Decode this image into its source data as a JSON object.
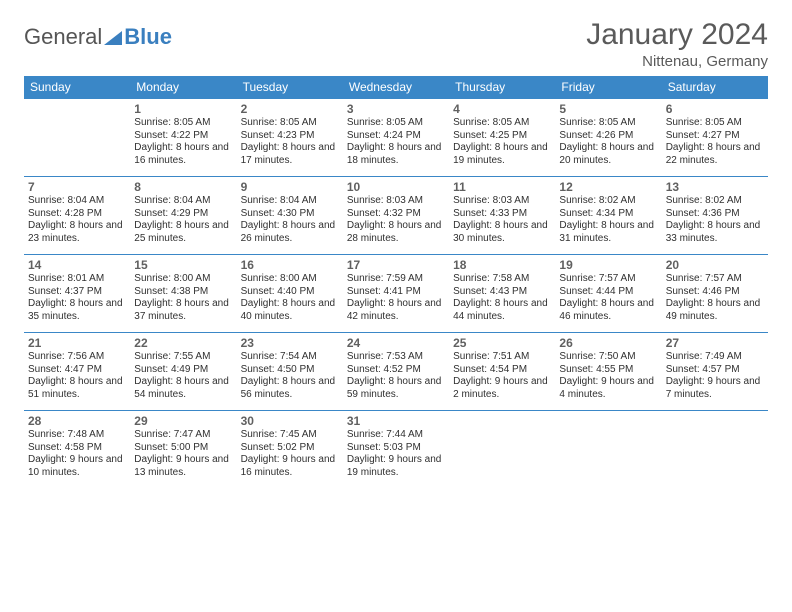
{
  "logo": {
    "part1": "General",
    "part2": "Blue"
  },
  "title": "January 2024",
  "location": "Nittenau, Germany",
  "colors": {
    "header_bg": "#3a87c7",
    "header_text": "#ffffff",
    "rule": "#3a87c7",
    "body_text": "#303030",
    "muted_text": "#5a5a5a"
  },
  "weekdays": [
    "Sunday",
    "Monday",
    "Tuesday",
    "Wednesday",
    "Thursday",
    "Friday",
    "Saturday"
  ],
  "start_offset": 1,
  "days": [
    {
      "n": "1",
      "sunrise": "8:05 AM",
      "sunset": "4:22 PM",
      "dl": "8 hours and 16 minutes."
    },
    {
      "n": "2",
      "sunrise": "8:05 AM",
      "sunset": "4:23 PM",
      "dl": "8 hours and 17 minutes."
    },
    {
      "n": "3",
      "sunrise": "8:05 AM",
      "sunset": "4:24 PM",
      "dl": "8 hours and 18 minutes."
    },
    {
      "n": "4",
      "sunrise": "8:05 AM",
      "sunset": "4:25 PM",
      "dl": "8 hours and 19 minutes."
    },
    {
      "n": "5",
      "sunrise": "8:05 AM",
      "sunset": "4:26 PM",
      "dl": "8 hours and 20 minutes."
    },
    {
      "n": "6",
      "sunrise": "8:05 AM",
      "sunset": "4:27 PM",
      "dl": "8 hours and 22 minutes."
    },
    {
      "n": "7",
      "sunrise": "8:04 AM",
      "sunset": "4:28 PM",
      "dl": "8 hours and 23 minutes."
    },
    {
      "n": "8",
      "sunrise": "8:04 AM",
      "sunset": "4:29 PM",
      "dl": "8 hours and 25 minutes."
    },
    {
      "n": "9",
      "sunrise": "8:04 AM",
      "sunset": "4:30 PM",
      "dl": "8 hours and 26 minutes."
    },
    {
      "n": "10",
      "sunrise": "8:03 AM",
      "sunset": "4:32 PM",
      "dl": "8 hours and 28 minutes."
    },
    {
      "n": "11",
      "sunrise": "8:03 AM",
      "sunset": "4:33 PM",
      "dl": "8 hours and 30 minutes."
    },
    {
      "n": "12",
      "sunrise": "8:02 AM",
      "sunset": "4:34 PM",
      "dl": "8 hours and 31 minutes."
    },
    {
      "n": "13",
      "sunrise": "8:02 AM",
      "sunset": "4:36 PM",
      "dl": "8 hours and 33 minutes."
    },
    {
      "n": "14",
      "sunrise": "8:01 AM",
      "sunset": "4:37 PM",
      "dl": "8 hours and 35 minutes."
    },
    {
      "n": "15",
      "sunrise": "8:00 AM",
      "sunset": "4:38 PM",
      "dl": "8 hours and 37 minutes."
    },
    {
      "n": "16",
      "sunrise": "8:00 AM",
      "sunset": "4:40 PM",
      "dl": "8 hours and 40 minutes."
    },
    {
      "n": "17",
      "sunrise": "7:59 AM",
      "sunset": "4:41 PM",
      "dl": "8 hours and 42 minutes."
    },
    {
      "n": "18",
      "sunrise": "7:58 AM",
      "sunset": "4:43 PM",
      "dl": "8 hours and 44 minutes."
    },
    {
      "n": "19",
      "sunrise": "7:57 AM",
      "sunset": "4:44 PM",
      "dl": "8 hours and 46 minutes."
    },
    {
      "n": "20",
      "sunrise": "7:57 AM",
      "sunset": "4:46 PM",
      "dl": "8 hours and 49 minutes."
    },
    {
      "n": "21",
      "sunrise": "7:56 AM",
      "sunset": "4:47 PM",
      "dl": "8 hours and 51 minutes."
    },
    {
      "n": "22",
      "sunrise": "7:55 AM",
      "sunset": "4:49 PM",
      "dl": "8 hours and 54 minutes."
    },
    {
      "n": "23",
      "sunrise": "7:54 AM",
      "sunset": "4:50 PM",
      "dl": "8 hours and 56 minutes."
    },
    {
      "n": "24",
      "sunrise": "7:53 AM",
      "sunset": "4:52 PM",
      "dl": "8 hours and 59 minutes."
    },
    {
      "n": "25",
      "sunrise": "7:51 AM",
      "sunset": "4:54 PM",
      "dl": "9 hours and 2 minutes."
    },
    {
      "n": "26",
      "sunrise": "7:50 AM",
      "sunset": "4:55 PM",
      "dl": "9 hours and 4 minutes."
    },
    {
      "n": "27",
      "sunrise": "7:49 AM",
      "sunset": "4:57 PM",
      "dl": "9 hours and 7 minutes."
    },
    {
      "n": "28",
      "sunrise": "7:48 AM",
      "sunset": "4:58 PM",
      "dl": "9 hours and 10 minutes."
    },
    {
      "n": "29",
      "sunrise": "7:47 AM",
      "sunset": "5:00 PM",
      "dl": "9 hours and 13 minutes."
    },
    {
      "n": "30",
      "sunrise": "7:45 AM",
      "sunset": "5:02 PM",
      "dl": "9 hours and 16 minutes."
    },
    {
      "n": "31",
      "sunrise": "7:44 AM",
      "sunset": "5:03 PM",
      "dl": "9 hours and 19 minutes."
    }
  ],
  "labels": {
    "sunrise": "Sunrise:",
    "sunset": "Sunset:",
    "daylight": "Daylight:"
  }
}
